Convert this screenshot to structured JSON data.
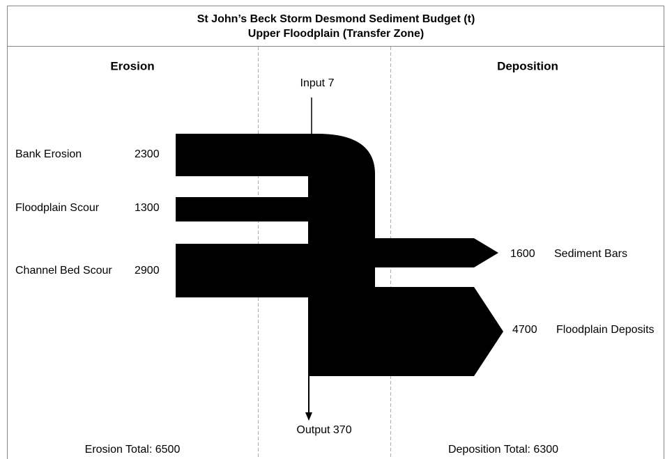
{
  "header": {
    "title": "St John’s Beck Storm Desmond Sediment Budget (t)",
    "subtitle": "Upper Floodplain (Transfer Zone)"
  },
  "columns": {
    "left": "Erosion",
    "right": "Deposition"
  },
  "input": {
    "label": "Input",
    "value": 7
  },
  "output": {
    "label": "Output",
    "value": 370
  },
  "erosion": [
    {
      "label": "Bank Erosion",
      "value": 2300
    },
    {
      "label": "Floodplain Scour",
      "value": 1300
    },
    {
      "label": "Channel Bed Scour",
      "value": 2900
    }
  ],
  "deposition": [
    {
      "label": "Sediment Bars",
      "value": 1600
    },
    {
      "label": "Floodplain Deposits",
      "value": 4700
    }
  ],
  "totals": {
    "erosion": {
      "label": "Erosion Total:",
      "value": 6500
    },
    "deposition": {
      "label": "Deposition Total:",
      "value": 6300
    }
  }
}
